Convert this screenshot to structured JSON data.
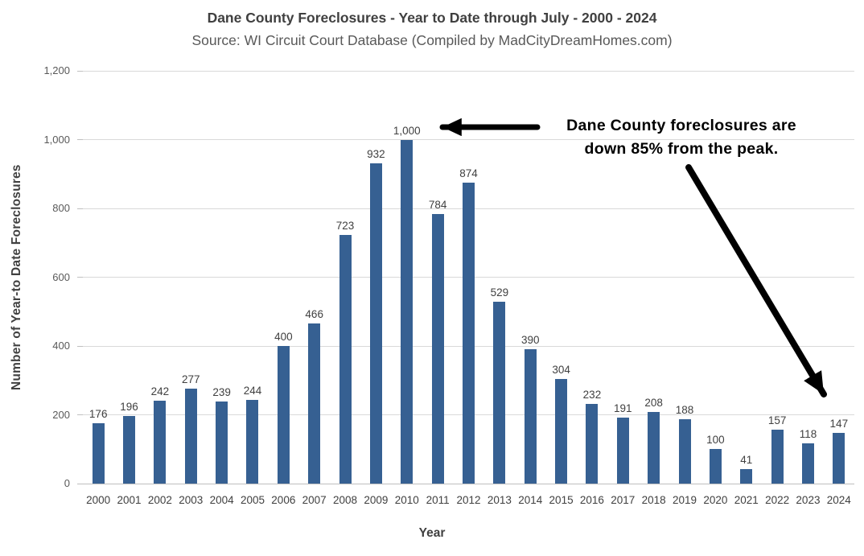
{
  "title": "Dane County Foreclosures - Year to Date through July - 2000 - 2024",
  "subtitle": "Source: WI Circuit Court Database (Compiled by MadCityDreamHomes.com)",
  "annotation": {
    "line1": "Dane County foreclosures are",
    "line2": "down 85% from the peak."
  },
  "colors": {
    "bar": "#366092",
    "gridline": "#d9d9d9",
    "axis_line": "#bfbfbf",
    "tick_dash": "#bfbfbf",
    "data_label": "#404040",
    "annotation": "#000000"
  },
  "chart_data": {
    "type": "bar",
    "title": "Dane County Foreclosures - Year to Date through July - 2000 - 2024",
    "subtitle": "Source: WI Circuit Court Database (Compiled by MadCityDreamHomes.com)",
    "categories": [
      "2000",
      "2001",
      "2002",
      "2003",
      "2004",
      "2005",
      "2006",
      "2007",
      "2008",
      "2009",
      "2010",
      "2011",
      "2012",
      "2013",
      "2014",
      "2015",
      "2016",
      "2017",
      "2018",
      "2019",
      "2020",
      "2021",
      "2022",
      "2023",
      "2024"
    ],
    "values": [
      176,
      196,
      242,
      277,
      239,
      244,
      400,
      466,
      723,
      932,
      1000,
      784,
      874,
      529,
      390,
      304,
      232,
      191,
      208,
      188,
      100,
      41,
      157,
      118,
      147
    ],
    "value_labels": [
      "176",
      "196",
      "242",
      "277",
      "239",
      "244",
      "400",
      "466",
      "723",
      "932",
      "1,000",
      "784",
      "874",
      "529",
      "390",
      "304",
      "232",
      "191",
      "208",
      "188",
      "100",
      "41",
      "157",
      "118",
      "147"
    ],
    "xlabel": "Year",
    "ylabel": "Number of Year-to Date Foreclosures",
    "ylim": [
      0,
      1200
    ],
    "ytick_interval": 200,
    "yticks": [
      "0",
      "200",
      "400",
      "600",
      "800",
      "1,000",
      "1,200"
    ],
    "grid": true,
    "legend": "none",
    "annotation_text": "Dane County foreclosures are down 85% from the peak."
  }
}
